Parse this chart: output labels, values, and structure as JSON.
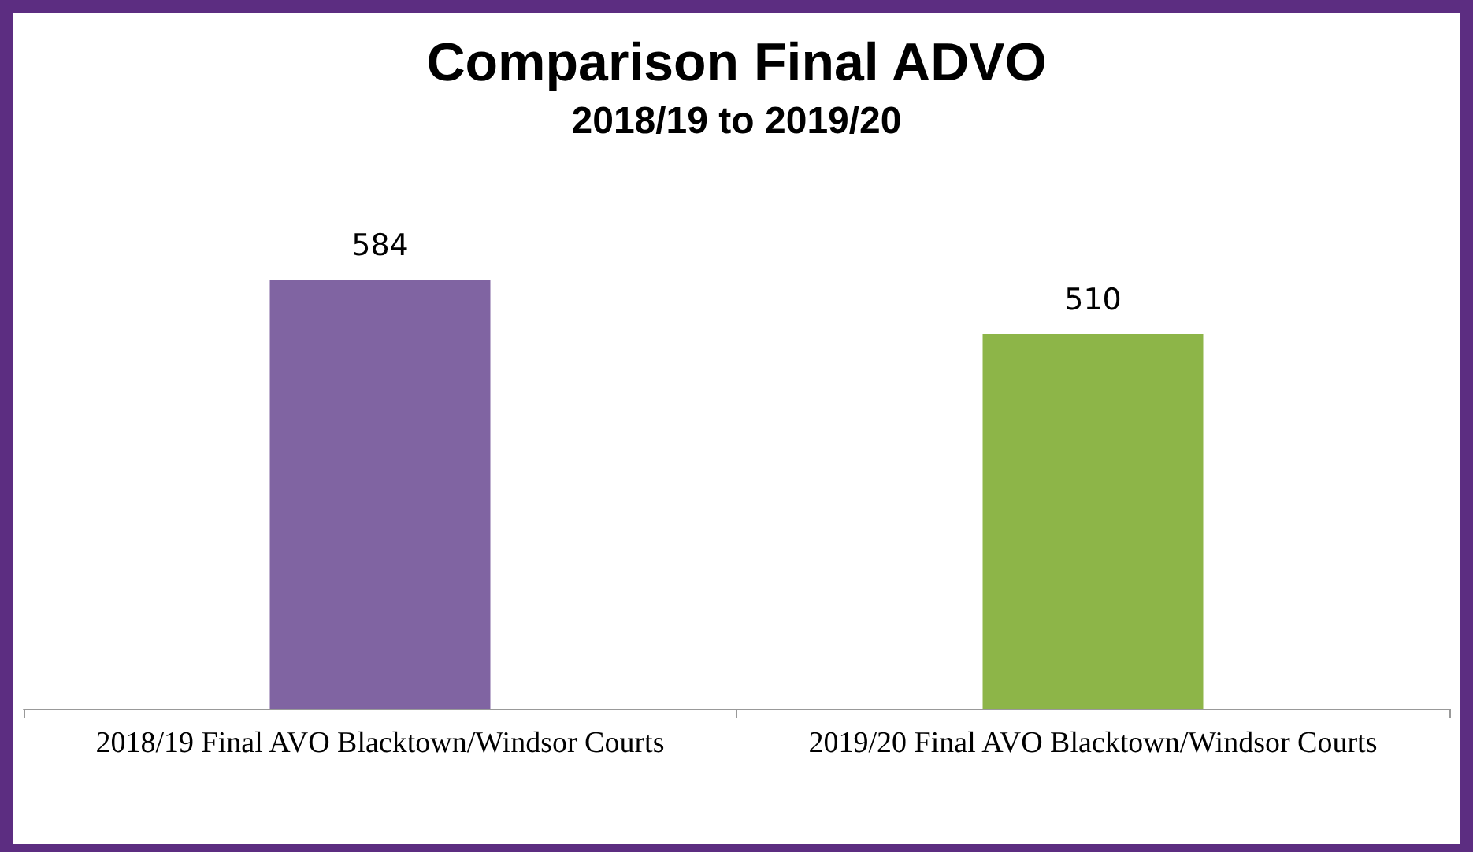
{
  "chart_data": {
    "type": "bar",
    "title": "Comparison Final ADVO",
    "subtitle": "2018/19 to 2019/20",
    "categories": [
      "2018/19 Final AVO Blacktown/Windsor Courts",
      "2019/20 Final AVO Blacktown/Windsor Courts"
    ],
    "values": [
      584,
      510
    ],
    "colors": [
      "#8064a2",
      "#8db548"
    ],
    "data_labels": true
  }
}
